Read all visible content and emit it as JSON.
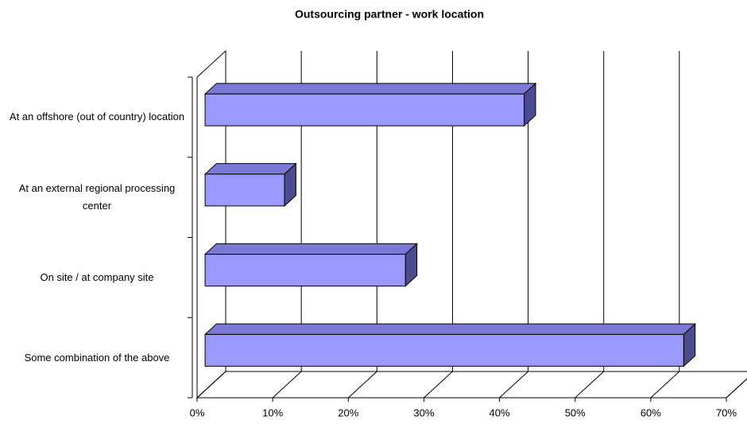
{
  "chart_data": {
    "type": "bar3d_horizontal",
    "title": "Outsourcing partner - work location",
    "categories": [
      "At an offshore (out of country) location",
      "At an external regional processing center",
      "On site / at company site",
      "Some combination of the above"
    ],
    "values": [
      42.2,
      10.5,
      26.5,
      63.3
    ],
    "color": "#9999ff",
    "xlim": [
      0,
      70
    ],
    "xticks": [
      {
        "value": 0,
        "label": "0%"
      },
      {
        "value": 10,
        "label": "10%"
      },
      {
        "value": 20,
        "label": "20%"
      },
      {
        "value": 30,
        "label": "30%"
      },
      {
        "value": 40,
        "label": "40%"
      },
      {
        "value": 50,
        "label": "50%"
      },
      {
        "value": 60,
        "label": "60%"
      },
      {
        "value": 70,
        "label": "70%"
      }
    ],
    "grid": true
  }
}
